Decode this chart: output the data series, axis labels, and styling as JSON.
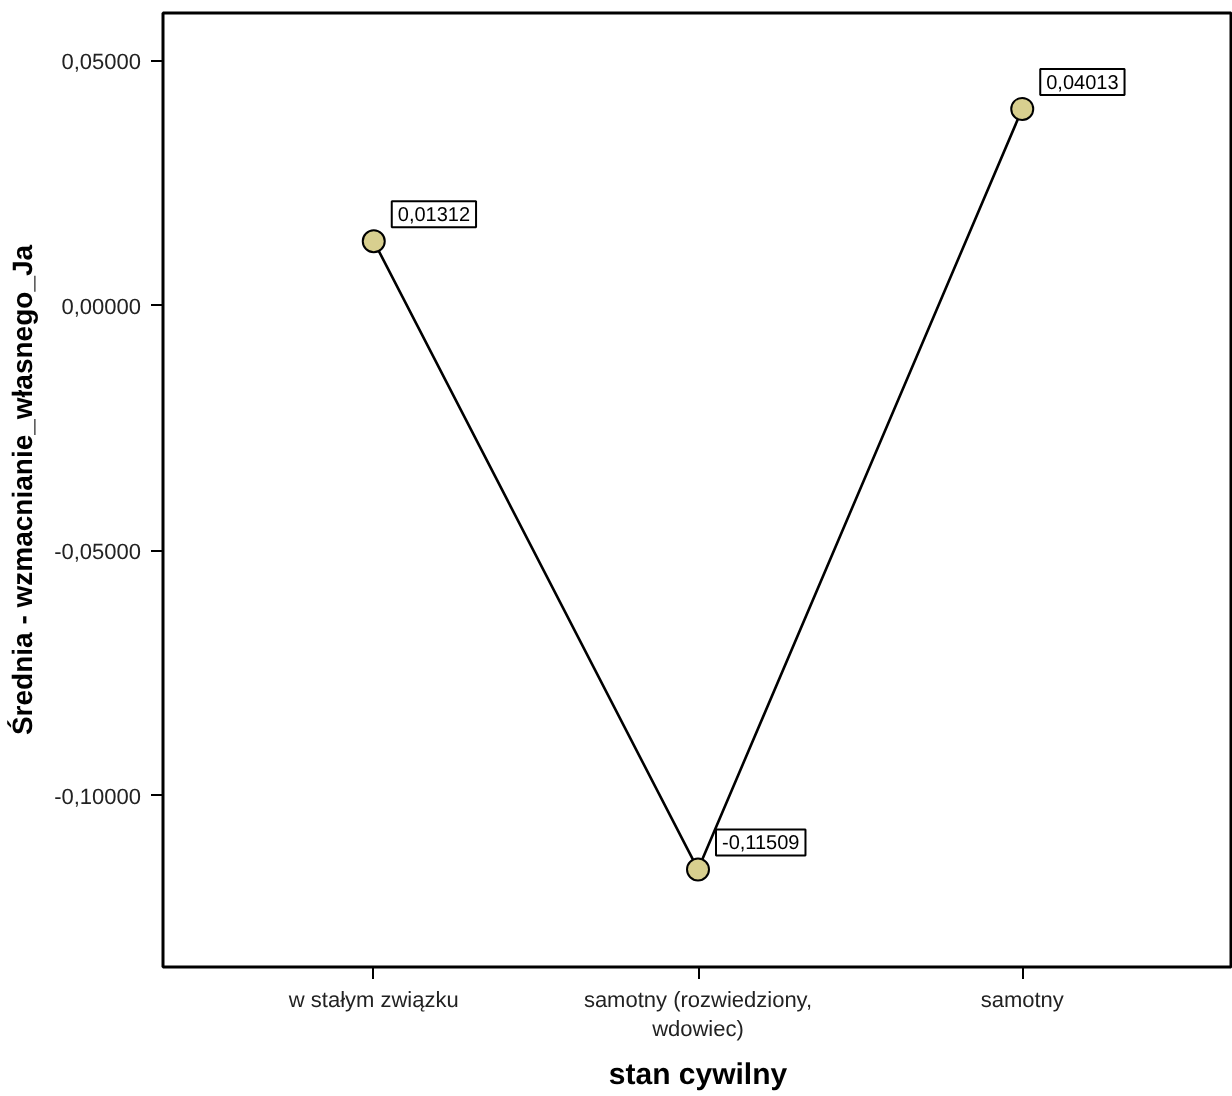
{
  "chart_data": {
    "type": "line",
    "xlabel": "stan cywilny",
    "ylabel": "Średnia - wzmacnianie_własnego_Ja",
    "categories": [
      "w stałym związku",
      "samotny (rozwiedziony,\nwdowiec)",
      "samotny"
    ],
    "series": [
      {
        "color": "#000000",
        "colors": [
          "#d8cf8f",
          "#d8cf8f",
          "#d8cf8f"
        ],
        "values": [
          0.01312,
          -0.11509,
          0.04013
        ],
        "value_labels": [
          "0,01312",
          "-0,11509",
          "0,04013"
        ]
      }
    ],
    "ylim": [
      -0.135,
      0.0597
    ],
    "yticks": [
      {
        "value": 0.05,
        "label": "0,05000"
      },
      {
        "value": 0.0,
        "label": "0,00000"
      },
      {
        "value": -0.05,
        "label": "-0,05000"
      },
      {
        "value": -0.1,
        "label": "-0,10000"
      }
    ],
    "marker": "circle",
    "line_style": "solid",
    "grid": false
  }
}
